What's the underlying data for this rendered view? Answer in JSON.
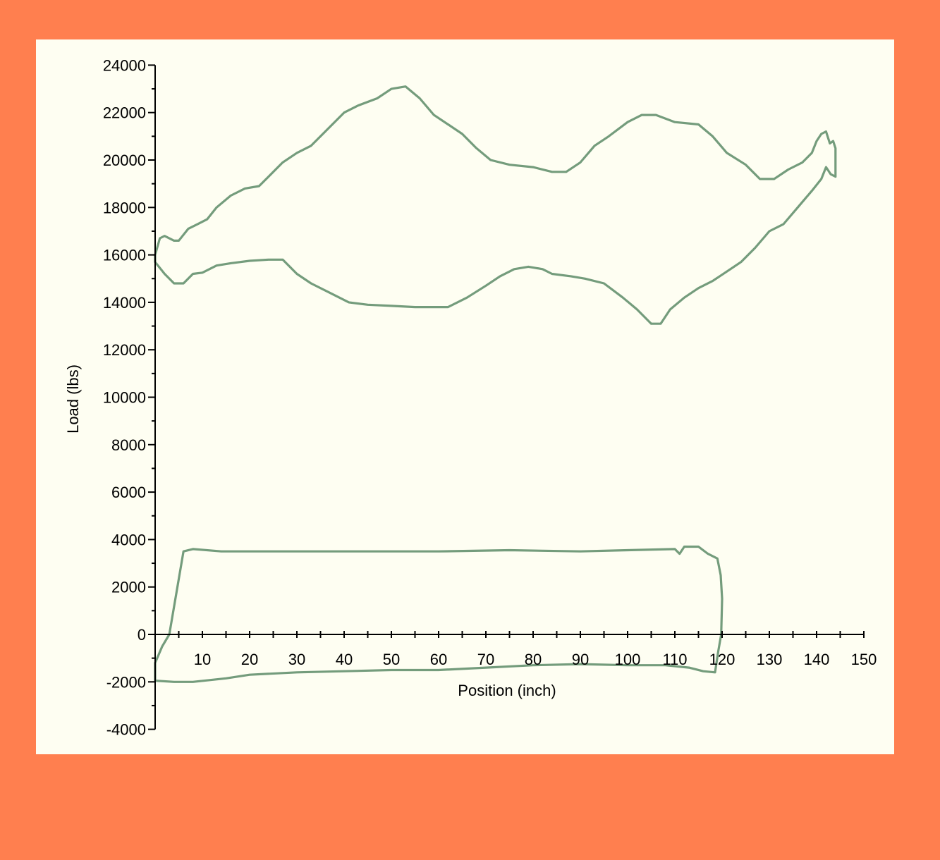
{
  "colors": {
    "background": "#ff7f4f",
    "plot_area": "#fefef2",
    "series": "#749c7c",
    "axis": "#000000"
  },
  "chart_data": {
    "type": "line",
    "title": "",
    "xlabel": "Position (inch)",
    "ylabel": "Load (lbs)",
    "xlim": [
      0,
      150
    ],
    "ylim": [
      -4000,
      24000
    ],
    "x_ticks": [
      10,
      20,
      30,
      40,
      50,
      60,
      70,
      80,
      90,
      100,
      110,
      120,
      130,
      140,
      150
    ],
    "x_tick_labels": [
      "10",
      "20",
      "30",
      "40",
      "50",
      "60",
      "70",
      "80",
      "90",
      "100",
      "110",
      "120",
      "130",
      "140",
      "150"
    ],
    "y_ticks": [
      24000,
      22000,
      20000,
      18000,
      16000,
      14000,
      12000,
      10000,
      8000,
      6000,
      4000,
      2000,
      0,
      -2000,
      -4000
    ],
    "y_tick_labels": [
      "24000",
      "22000",
      "20000",
      "18000",
      "16000",
      "14000",
      "12000",
      "10000",
      "8000",
      "6000",
      "4000",
      "2000",
      "0",
      "-2000",
      "-4000"
    ],
    "grid": false,
    "legend": "none",
    "series": [
      {
        "points": [
          [
            0,
            16000
          ],
          [
            1,
            16700
          ],
          [
            2,
            16800
          ],
          [
            4,
            16600
          ],
          [
            5,
            16600
          ],
          [
            7,
            17100
          ],
          [
            9,
            17300
          ],
          [
            11,
            17500
          ],
          [
            13,
            18000
          ],
          [
            16,
            18500
          ],
          [
            19,
            18800
          ],
          [
            22,
            18900
          ],
          [
            24,
            19300
          ],
          [
            27,
            19900
          ],
          [
            30,
            20300
          ],
          [
            33,
            20600
          ],
          [
            36,
            21200
          ],
          [
            40,
            22000
          ],
          [
            43,
            22300
          ],
          [
            47,
            22600
          ],
          [
            50,
            23000
          ],
          [
            53,
            23100
          ],
          [
            56,
            22600
          ],
          [
            59,
            21900
          ],
          [
            62,
            21500
          ],
          [
            65,
            21100
          ],
          [
            68,
            20500
          ],
          [
            71,
            20000
          ],
          [
            75,
            19800
          ],
          [
            80,
            19700
          ],
          [
            84,
            19500
          ],
          [
            87,
            19500
          ],
          [
            90,
            19900
          ],
          [
            93,
            20600
          ],
          [
            96,
            21000
          ],
          [
            100,
            21600
          ],
          [
            103,
            21900
          ],
          [
            106,
            21900
          ],
          [
            110,
            21600
          ],
          [
            115,
            21500
          ],
          [
            118,
            21000
          ],
          [
            121,
            20300
          ],
          [
            125,
            19800
          ],
          [
            128,
            19200
          ],
          [
            131,
            19200
          ],
          [
            134,
            19600
          ],
          [
            137,
            19900
          ],
          [
            139,
            20300
          ],
          [
            140,
            20800
          ],
          [
            141,
            21100
          ],
          [
            142,
            21200
          ],
          [
            142.8,
            20700
          ],
          [
            143.5,
            20800
          ],
          [
            144,
            20500
          ],
          [
            144,
            19300
          ],
          [
            143,
            19400
          ],
          [
            142,
            19700
          ],
          [
            141,
            19200
          ],
          [
            139,
            18700
          ],
          [
            136,
            18000
          ],
          [
            133,
            17300
          ],
          [
            130,
            17000
          ],
          [
            127,
            16300
          ],
          [
            124,
            15700
          ],
          [
            121,
            15300
          ],
          [
            118,
            14900
          ],
          [
            115,
            14600
          ],
          [
            112,
            14200
          ],
          [
            109,
            13700
          ],
          [
            107,
            13100
          ],
          [
            105,
            13100
          ],
          [
            102,
            13700
          ],
          [
            99,
            14200
          ],
          [
            95,
            14800
          ],
          [
            91,
            15000
          ],
          [
            88,
            15100
          ],
          [
            84,
            15200
          ],
          [
            82,
            15400
          ],
          [
            79,
            15500
          ],
          [
            76,
            15400
          ],
          [
            73,
            15100
          ],
          [
            70,
            14700
          ],
          [
            66,
            14200
          ],
          [
            62,
            13800
          ],
          [
            58,
            13800
          ],
          [
            55,
            13800
          ],
          [
            50,
            13850
          ],
          [
            45,
            13900
          ],
          [
            41,
            14000
          ],
          [
            37,
            14400
          ],
          [
            33,
            14800
          ],
          [
            30,
            15200
          ],
          [
            27,
            15800
          ],
          [
            24,
            15800
          ],
          [
            20,
            15750
          ],
          [
            16,
            15650
          ],
          [
            13,
            15550
          ],
          [
            10,
            15250
          ],
          [
            8,
            15200
          ],
          [
            6,
            14800
          ],
          [
            4,
            14800
          ],
          [
            2,
            15200
          ],
          [
            0,
            15700
          ],
          [
            0,
            16000
          ]
        ]
      },
      {
        "points": [
          [
            0,
            -1200
          ],
          [
            1.5,
            -500
          ],
          [
            3,
            0
          ],
          [
            6,
            3500
          ],
          [
            8,
            3600
          ],
          [
            14,
            3500
          ],
          [
            30,
            3500
          ],
          [
            45,
            3500
          ],
          [
            60,
            3500
          ],
          [
            75,
            3550
          ],
          [
            90,
            3500
          ],
          [
            100,
            3550
          ],
          [
            110,
            3600
          ],
          [
            111,
            3400
          ],
          [
            112,
            3700
          ],
          [
            115,
            3700
          ],
          [
            117,
            3400
          ],
          [
            119,
            3200
          ],
          [
            119.7,
            2500
          ],
          [
            120,
            1500
          ],
          [
            119.8,
            0
          ],
          [
            119.2,
            -700
          ],
          [
            118.5,
            -1600
          ],
          [
            116,
            -1550
          ],
          [
            113,
            -1400
          ],
          [
            108,
            -1300
          ],
          [
            100,
            -1300
          ],
          [
            90,
            -1250
          ],
          [
            80,
            -1300
          ],
          [
            70,
            -1400
          ],
          [
            60,
            -1500
          ],
          [
            50,
            -1500
          ],
          [
            40,
            -1550
          ],
          [
            30,
            -1600
          ],
          [
            20,
            -1700
          ],
          [
            15,
            -1850
          ],
          [
            8,
            -2000
          ],
          [
            4,
            -2000
          ],
          [
            0,
            -1950
          ],
          [
            0,
            -1200
          ]
        ]
      }
    ]
  }
}
